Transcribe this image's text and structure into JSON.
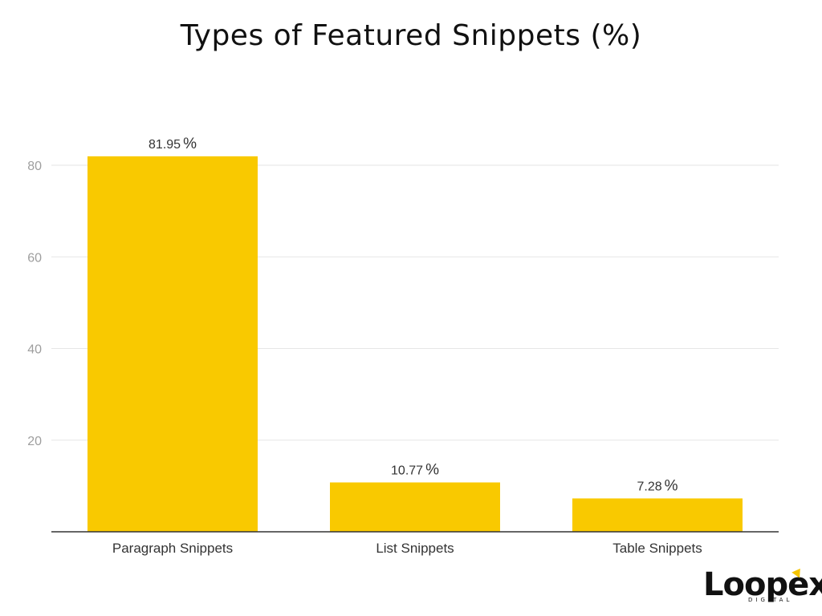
{
  "chart_data": {
    "type": "bar",
    "title": "Types of Featured Snippets (%)",
    "categories": [
      "Paragraph Snippets",
      "List Snippets",
      "Table Snippets"
    ],
    "values": [
      81.95,
      10.77,
      7.28
    ],
    "value_labels": [
      "81.95",
      "10.77",
      "7.28"
    ],
    "value_unit": "%",
    "yticks": [
      20,
      40,
      60,
      80
    ],
    "ylim": [
      0,
      80
    ],
    "xlabel": "",
    "ylabel": "",
    "grid": true,
    "legend": "none",
    "bar_color": "#f9c900",
    "grid_color": "#e6e6e6",
    "axis_color": "#333333"
  },
  "logo": {
    "word": "Loopex",
    "sub": "DIGITAL",
    "accent_color": "#f5c400"
  }
}
